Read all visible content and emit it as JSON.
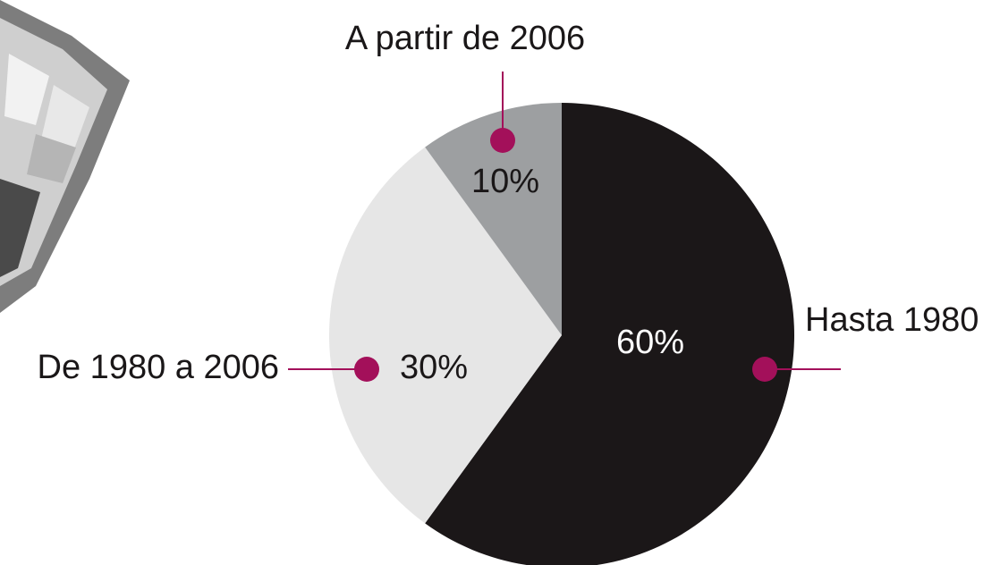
{
  "chart_data": {
    "type": "pie",
    "categories": [
      "Hasta 1980",
      "De 1980 a 2006",
      "A partir de 2006"
    ],
    "values": [
      60,
      30,
      10
    ],
    "value_labels": [
      "60%",
      "30%",
      "10%"
    ],
    "colors": [
      "#1b1718",
      "#e6e6e6",
      "#9d9fa1"
    ],
    "label_text_colors": [
      "#ffffff",
      "#1a1718",
      "#1a1718"
    ],
    "marker_color": "#a3105a"
  }
}
